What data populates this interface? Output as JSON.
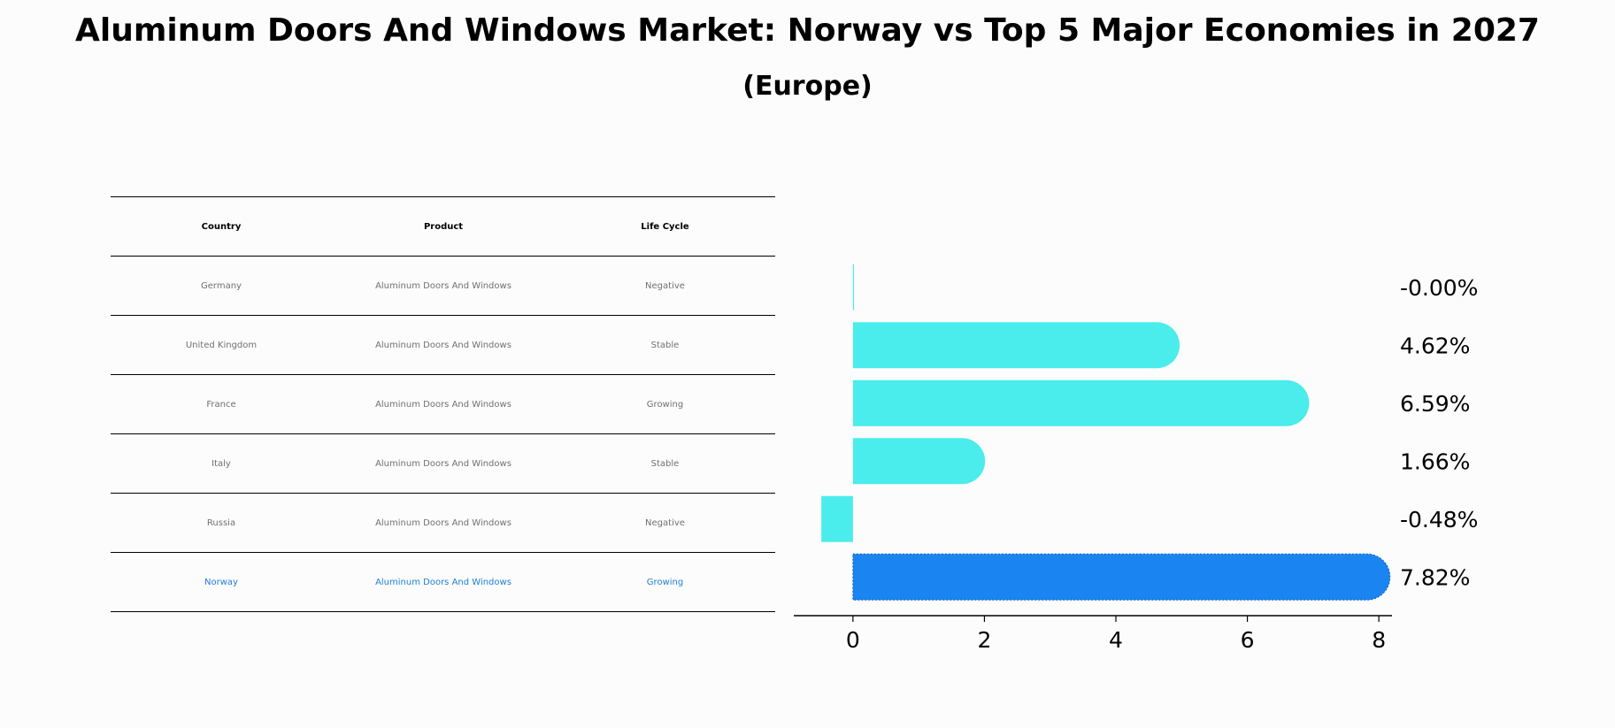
{
  "title": "Aluminum Doors And Windows Market: Norway vs Top 5 Major Economies in 2027",
  "subtitle": "(Europe)",
  "table": {
    "headers": [
      "Country",
      "Product",
      "Life Cycle"
    ],
    "rows": [
      {
        "country": "Germany",
        "product": "Aluminum Doors And Windows",
        "life_cycle": "Negative"
      },
      {
        "country": "United Kingdom",
        "product": "Aluminum Doors And Windows",
        "life_cycle": "Stable"
      },
      {
        "country": "France",
        "product": "Aluminum Doors And Windows",
        "life_cycle": "Growing"
      },
      {
        "country": "Italy",
        "product": "Aluminum Doors And Windows",
        "life_cycle": "Stable"
      },
      {
        "country": "Russia",
        "product": "Aluminum Doors And Windows",
        "life_cycle": "Negative"
      },
      {
        "country": "Norway",
        "product": "Aluminum Doors And Windows",
        "life_cycle": "Growing"
      }
    ]
  },
  "colors": {
    "bar": "#4aecec",
    "highlight_bar": "#1a85f0",
    "highlight_text": "#1e7fd6"
  },
  "chart_data": {
    "type": "bar",
    "orientation": "horizontal",
    "categories": [
      "Germany",
      "United Kingdom",
      "France",
      "Italy",
      "Russia",
      "Norway"
    ],
    "values": [
      -0.0,
      4.62,
      6.59,
      1.66,
      -0.48,
      7.82
    ],
    "data_labels": [
      "-0.00%",
      "4.62%",
      "6.59%",
      "1.66%",
      "-0.48%",
      "7.82%"
    ],
    "highlight": "Norway",
    "xlim": [
      -0.9,
      8.2
    ],
    "xticks": [
      0,
      2,
      4,
      6,
      8
    ],
    "xlabel": "",
    "ylabel": ""
  }
}
